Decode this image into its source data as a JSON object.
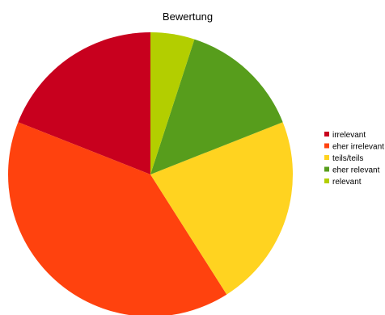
{
  "chart_data": {
    "type": "pie",
    "title": "Bewertung",
    "categories": [
      "irrelevant",
      "eher irrelevant",
      "teils/teils",
      "eher relevant",
      "relevant"
    ],
    "values": [
      19,
      40,
      22,
      14,
      5
    ],
    "unit": "percent",
    "colors": [
      "#c8001e",
      "#ff420e",
      "#ffd320",
      "#579d1c",
      "#b3ce00"
    ],
    "start_angle_deg": 0,
    "direction": "counterclockwise",
    "legend_position": "right",
    "grid": false
  }
}
